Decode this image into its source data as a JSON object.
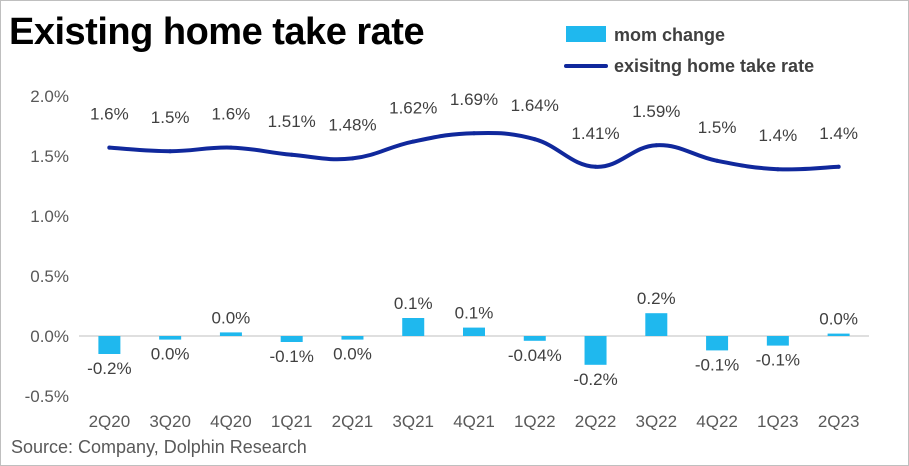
{
  "title": "Existing home take rate",
  "source": "Source: Company, Dolphin Research",
  "colors": {
    "bar": "#1fb8ee",
    "line": "#10289c",
    "axis": "#bfbfbf",
    "text": "#595959"
  },
  "chart_data": {
    "type": "bar",
    "categories": [
      "2Q20",
      "3Q20",
      "4Q20",
      "1Q21",
      "2Q21",
      "3Q21",
      "4Q21",
      "1Q22",
      "2Q22",
      "3Q22",
      "4Q22",
      "1Q23",
      "2Q23"
    ],
    "ylim": [
      -0.5,
      2.0
    ],
    "y_ticks": [
      -0.5,
      0.0,
      0.5,
      1.0,
      1.5,
      2.0
    ],
    "y_tick_labels": [
      "-0.5%",
      "0.0%",
      "0.5%",
      "1.0%",
      "1.5%",
      "2.0%"
    ],
    "grid": false,
    "legend_position": "top-right",
    "series": [
      {
        "name": "mom change",
        "type": "bar",
        "values": [
          -0.15,
          -0.03,
          0.03,
          -0.05,
          -0.03,
          0.15,
          0.07,
          -0.04,
          -0.24,
          0.19,
          -0.12,
          -0.08,
          0.02
        ],
        "labels": [
          "-0.2%",
          "0.0%",
          "0.0%",
          "-0.1%",
          "0.0%",
          "0.1%",
          "0.1%",
          "-0.04%",
          "-0.2%",
          "0.2%",
          "-0.1%",
          "-0.1%",
          "0.0%"
        ]
      },
      {
        "name": "exisitng home take rate",
        "type": "line",
        "values": [
          1.57,
          1.54,
          1.57,
          1.51,
          1.48,
          1.62,
          1.69,
          1.64,
          1.41,
          1.59,
          1.46,
          1.39,
          1.41
        ],
        "labels": [
          "1.6%",
          "1.5%",
          "1.6%",
          "1.51%",
          "1.48%",
          "1.62%",
          "1.69%",
          "1.64%",
          "1.41%",
          "1.59%",
          "1.5%",
          "1.4%",
          "1.4%"
        ]
      }
    ]
  }
}
